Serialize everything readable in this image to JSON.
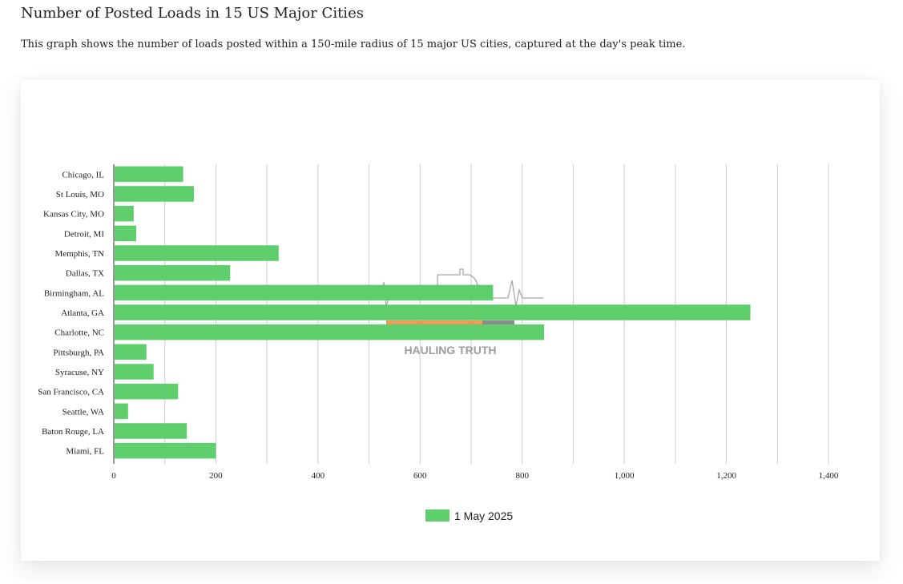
{
  "page": {
    "title": "Number of Posted Loads in 15 US Major Cities",
    "subtitle": "This graph shows the number of loads posted within a 150-mile radius of 15 major US cities, captured at the day's peak time."
  },
  "watermark": {
    "text": "HAULING TRUTH"
  },
  "colors": {
    "bar": "#5ecf6c",
    "grid": "#cccccc",
    "axis": "#333333"
  },
  "chart_data": {
    "type": "bar",
    "orientation": "horizontal",
    "title": "Number of Posted Loads in 15 US Major Cities",
    "xlabel": "",
    "ylabel": "",
    "categories": [
      "Chicago, IL",
      "St Louis, MO",
      "Kansas City, MO",
      "Detroit, MI",
      "Memphis, TN",
      "Dallas, TX",
      "Birmingham, AL",
      "Atlanta, GA",
      "Charlotte, NC",
      "Pittsburgh, PA",
      "Syracuse, NY",
      "San Francisco, CA",
      "Seattle, WA",
      "Baton Rouge, LA",
      "Miami, FL"
    ],
    "series": [
      {
        "name": "1 May 2025",
        "values": [
          136,
          157,
          39,
          44,
          323,
          228,
          743,
          1247,
          843,
          64,
          78,
          126,
          28,
          143,
          200
        ]
      }
    ],
    "xlim": [
      0,
      1400
    ],
    "tick_values": [
      0,
      200,
      400,
      600,
      800,
      1000,
      1200,
      1400
    ],
    "tick_labels": [
      "0",
      "200",
      "400",
      "600",
      "800",
      "1,000",
      "1,200",
      "1,400"
    ],
    "grid": true,
    "legend": {
      "position": "bottom",
      "entries": [
        "1 May 2025"
      ]
    }
  }
}
